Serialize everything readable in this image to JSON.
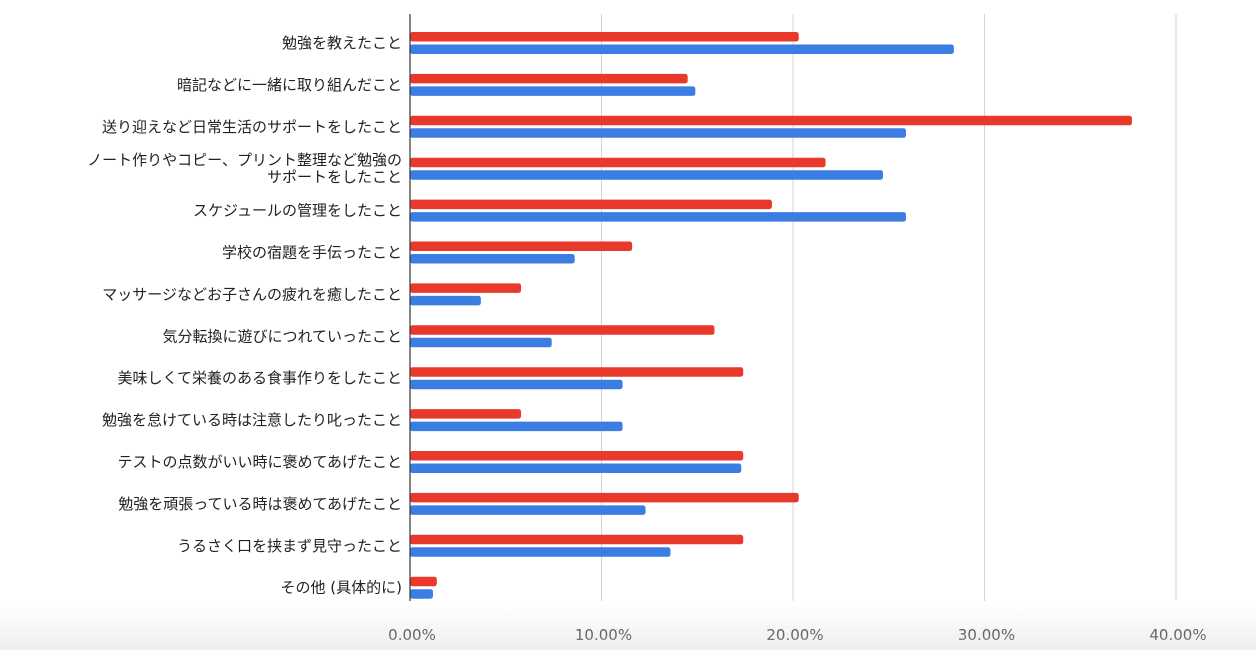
{
  "chart_data": {
    "type": "bar",
    "orientation": "horizontal",
    "title": "",
    "xlabel": "",
    "ylabel": "",
    "xlim": [
      0,
      40
    ],
    "grid": true,
    "legend": "none",
    "x_tick_labels": [
      "0.00%",
      "10.00%",
      "20.00%",
      "30.00%",
      "40.00%"
    ],
    "categories": [
      [
        "勉強を教えたこと"
      ],
      [
        "暗記などに一緒に取り組んだこと"
      ],
      [
        "送り迎えなど日常生活のサポートをしたこと"
      ],
      [
        "ノート作りやコピー、プリント整理など勉強の",
        "サポートをしたこと"
      ],
      [
        "スケジュールの管理をしたこと"
      ],
      [
        "学校の宿題を手伝ったこと"
      ],
      [
        "マッサージなどお子さんの疲れを癒したこと"
      ],
      [
        "気分転換に遊びにつれていったこと"
      ],
      [
        "美味しくて栄養のある食事作りをしたこと"
      ],
      [
        "勉強を怠けている時は注意したり叱ったこと"
      ],
      [
        "テストの点数がいい時に褒めてあげたこと"
      ],
      [
        "勉強を頑張っている時は褒めてあげたこと"
      ],
      [
        "うるさく口を挟まず見守ったこと"
      ],
      [
        "その他 (具体的に)"
      ]
    ],
    "series": [
      {
        "color": "#e8392b",
        "values": [
          20.3,
          14.5,
          37.7,
          21.7,
          18.9,
          11.6,
          5.8,
          15.9,
          17.4,
          5.8,
          17.4,
          20.3,
          17.4,
          1.4
        ]
      },
      {
        "color": "#3b7de3",
        "values": [
          28.4,
          14.9,
          25.9,
          24.7,
          25.9,
          8.6,
          3.7,
          7.4,
          11.1,
          11.1,
          17.3,
          12.3,
          13.6,
          1.2
        ]
      }
    ]
  }
}
